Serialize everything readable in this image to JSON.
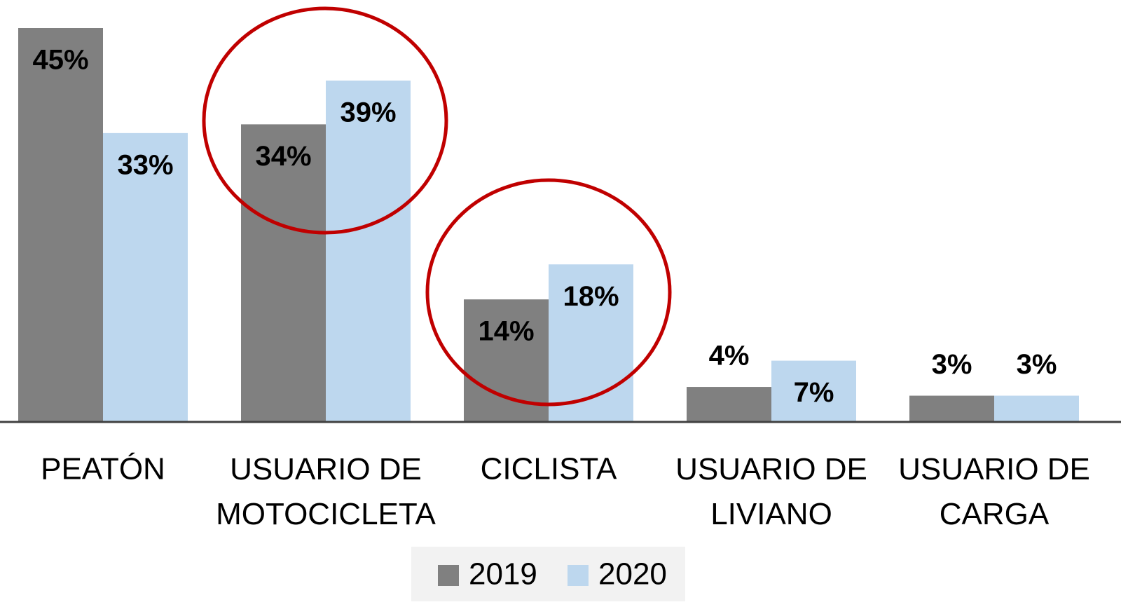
{
  "chart_data": {
    "type": "bar",
    "categories": [
      "PEATÓN",
      "USUARIO DE\nMOTOCICLETA",
      "CICLISTA",
      "USUARIO DE\nLIVIANO",
      "USUARIO DE\nCARGA"
    ],
    "series": [
      {
        "name": "2019",
        "color": "#808080",
        "values": [
          45,
          34,
          14,
          4,
          3
        ],
        "value_labels": [
          "45%",
          "34%",
          "14%",
          "4%",
          "3%"
        ]
      },
      {
        "name": "2020",
        "color": "#bdd7ee",
        "values": [
          33,
          39,
          18,
          7,
          3
        ],
        "value_labels": [
          "33%",
          "39%",
          "18%",
          "7%",
          "3%"
        ]
      }
    ],
    "ylim": [
      0,
      45
    ],
    "legend": "bottom"
  }
}
